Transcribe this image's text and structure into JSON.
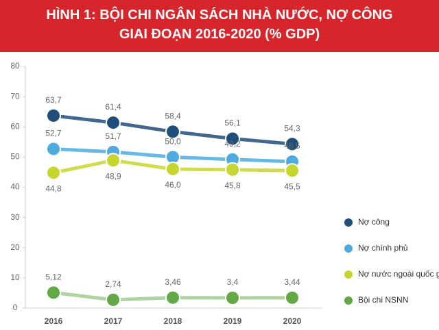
{
  "chart_data": {
    "type": "line",
    "title": [
      "HÌNH 1: BỘI CHI NGÂN SÁCH NHÀ NƯỚC, NỢ CÔNG",
      "GIAI ĐOẠN 2016-2020 (% GDP)"
    ],
    "categories": [
      "2016",
      "2017",
      "2018",
      "2019",
      "2020"
    ],
    "series": [
      {
        "name": "Nợ công",
        "color": "#1f4e7a",
        "values": [
          63.7,
          61.4,
          58.4,
          56.1,
          54.3
        ],
        "value_labels": [
          "63,7",
          "61,4",
          "58,4",
          "56,1",
          "54,3"
        ]
      },
      {
        "name": "Nợ chính phủ",
        "color": "#4dabe0",
        "values": [
          52.7,
          51.7,
          50.0,
          49.2,
          48.5
        ],
        "value_labels": [
          "52,7",
          "51,7",
          "50,0",
          "49,2",
          "48,5"
        ]
      },
      {
        "name": "Nợ nước ngoài quốc gia",
        "color": "#c6d62e",
        "values": [
          44.8,
          48.9,
          46.0,
          45.8,
          45.5
        ],
        "value_labels": [
          "44,8",
          "48,9",
          "46,0",
          "45,8",
          "45,5"
        ]
      },
      {
        "name": "Bội chi NSNN",
        "color": "#62a845",
        "values": [
          5.12,
          2.74,
          3.46,
          3.4,
          3.44
        ],
        "value_labels": [
          "5,12",
          "2,74",
          "3,46",
          "3,4",
          "3,44"
        ]
      }
    ],
    "ylim": [
      0,
      80
    ],
    "yticks": [
      0,
      10,
      20,
      30,
      40,
      50,
      60,
      70,
      80
    ]
  }
}
